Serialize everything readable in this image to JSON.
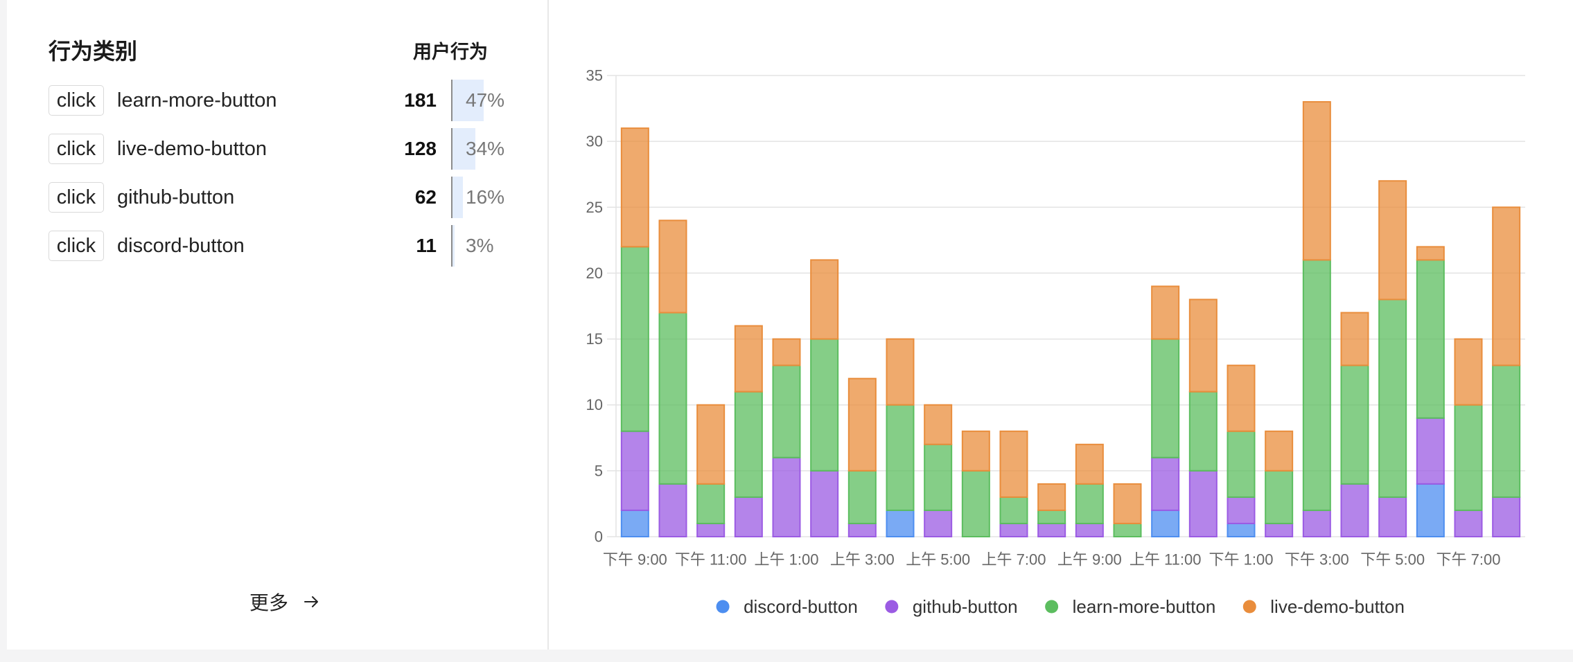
{
  "left_panel": {
    "header_category": "行为类别",
    "header_user_action": "用户行为",
    "bar_color": "#e3edfc",
    "rows": [
      {
        "event_type": "click",
        "label": "learn-more-button",
        "count": "181",
        "percent": "47%",
        "share": 0.47
      },
      {
        "event_type": "click",
        "label": "live-demo-button",
        "count": "128",
        "percent": "34%",
        "share": 0.34
      },
      {
        "event_type": "click",
        "label": "github-button",
        "count": "62",
        "percent": "16%",
        "share": 0.16
      },
      {
        "event_type": "click",
        "label": "discord-button",
        "count": "11",
        "percent": "3%",
        "share": 0.03
      }
    ],
    "more_label": "更多",
    "more_icon": "arrow-right-icon"
  },
  "chart_data": {
    "type": "bar",
    "stacked": true,
    "categories": [
      "下午 9:00",
      "",
      "下午 11:00",
      "",
      "上午 1:00",
      "",
      "上午 3:00",
      "",
      "上午 5:00",
      "",
      "上午 7:00",
      "",
      "上午 9:00",
      "",
      "上午 11:00",
      "",
      "下午 1:00",
      "",
      "下午 3:00",
      "",
      "下午 5:00",
      "",
      "下午 7:00",
      ""
    ],
    "series": [
      {
        "name": "discord-button",
        "color": "#4d8ef0",
        "values": [
          2,
          0,
          0,
          0,
          0,
          0,
          0,
          2,
          0,
          0,
          0,
          0,
          0,
          0,
          2,
          0,
          1,
          0,
          0,
          0,
          0,
          4,
          0,
          0
        ]
      },
      {
        "name": "github-button",
        "color": "#9b5be3",
        "values": [
          6,
          4,
          1,
          3,
          6,
          5,
          1,
          0,
          2,
          0,
          1,
          1,
          1,
          0,
          4,
          5,
          2,
          1,
          2,
          4,
          3,
          5,
          2,
          3
        ]
      },
      {
        "name": "learn-more-button",
        "color": "#5cbd5f",
        "values": [
          14,
          13,
          3,
          8,
          7,
          10,
          4,
          8,
          5,
          5,
          2,
          1,
          3,
          1,
          9,
          6,
          5,
          4,
          19,
          9,
          15,
          12,
          8,
          10
        ]
      },
      {
        "name": "live-demo-button",
        "color": "#e98d3c",
        "values": [
          9,
          7,
          6,
          5,
          2,
          6,
          7,
          5,
          3,
          3,
          5,
          2,
          3,
          3,
          4,
          7,
          5,
          3,
          12,
          4,
          9,
          1,
          5,
          12
        ]
      }
    ],
    "y_ticks": [
      0,
      5,
      10,
      15,
      20,
      25,
      30,
      35
    ],
    "ylim": [
      0,
      35
    ],
    "grid": true,
    "legend_position": "bottom"
  }
}
